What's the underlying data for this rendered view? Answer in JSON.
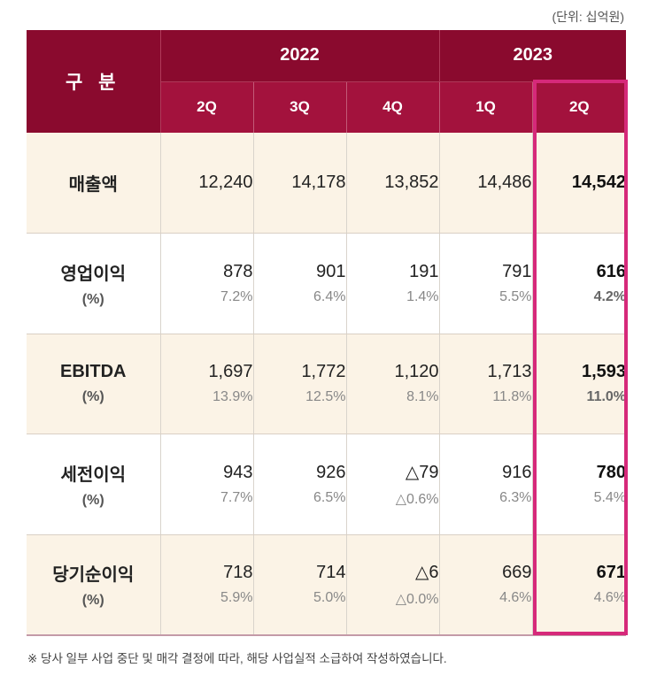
{
  "unit": "(단위: 십억원)",
  "header": {
    "category": "구 분",
    "years": [
      "2022",
      "2023"
    ],
    "quarters": [
      "2Q",
      "3Q",
      "4Q",
      "1Q",
      "2Q"
    ]
  },
  "rows": [
    {
      "label": "매출액",
      "sub": "",
      "values": [
        "12,240",
        "14,178",
        "13,852",
        "14,486",
        "14,542"
      ],
      "pcts": [
        "",
        "",
        "",
        "",
        ""
      ]
    },
    {
      "label": "영업이익",
      "sub": "(%)",
      "values": [
        "878",
        "901",
        "191",
        "791",
        "616"
      ],
      "pcts": [
        "7.2%",
        "6.4%",
        "1.4%",
        "5.5%",
        "4.2%"
      ]
    },
    {
      "label": "EBITDA",
      "sub": "(%)",
      "values": [
        "1,697",
        "1,772",
        "1,120",
        "1,713",
        "1,593"
      ],
      "pcts": [
        "13.9%",
        "12.5%",
        "8.1%",
        "11.8%",
        "11.0%"
      ]
    },
    {
      "label": "세전이익",
      "sub": "(%)",
      "values": [
        "943",
        "926",
        "△79",
        "916",
        "780"
      ],
      "pcts": [
        "7.7%",
        "6.5%",
        "△0.6%",
        "6.3%",
        "5.4%"
      ]
    },
    {
      "label": "당기순이익",
      "sub": "(%)",
      "values": [
        "718",
        "714",
        "△6",
        "669",
        "671"
      ],
      "pcts": [
        "5.9%",
        "5.0%",
        "△0.0%",
        "4.6%",
        "4.6%"
      ]
    }
  ],
  "footnote": "※  당사 일부 사업 중단 및 매각 결정에 따라, 해당 사업실적 소급하여 작성하였습니다."
}
